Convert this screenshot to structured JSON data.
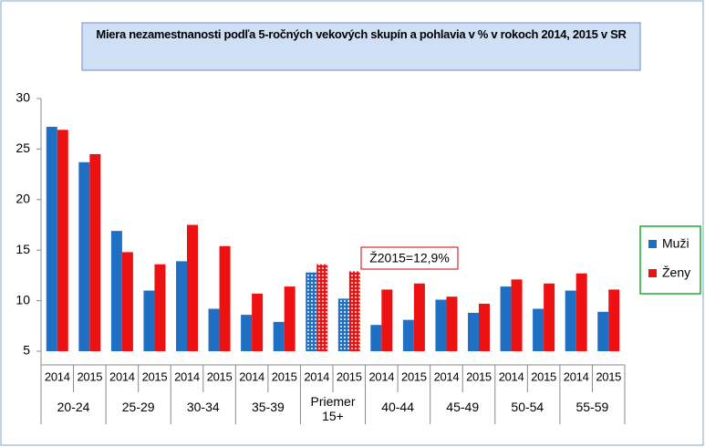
{
  "chart_data": {
    "type": "bar",
    "title": "Miera nezamestnanosti podľa 5-ročných vekových skupín a pohlavia v % v rokoch 2014, 2015 v SR",
    "categories": [
      "2014",
      "2015",
      "2014",
      "2015",
      "2014",
      "2015",
      "2014",
      "2015",
      "2014",
      "2015",
      "2014",
      "2015",
      "2014",
      "2015",
      "2014",
      "2015",
      "2014",
      "2015"
    ],
    "groups": [
      "20-24",
      "25-29",
      "30-34",
      "35-39",
      "Priemer 15+",
      "40-44",
      "45-49",
      "50-54",
      "55-59"
    ],
    "series": [
      {
        "name": "Muži",
        "color": "#1f6fc4",
        "values": [
          27.2,
          23.7,
          16.9,
          11.0,
          13.9,
          9.2,
          8.6,
          7.9,
          12.8,
          10.2,
          7.6,
          8.1,
          10.1,
          8.8,
          11.4,
          9.2,
          11.0,
          8.9
        ]
      },
      {
        "name": "Ženy",
        "color": "#ee1111",
        "values": [
          26.9,
          24.5,
          14.8,
          13.6,
          17.5,
          15.4,
          10.7,
          11.4,
          13.6,
          12.9,
          11.1,
          11.7,
          10.4,
          9.7,
          12.1,
          11.7,
          12.7,
          11.1
        ]
      }
    ],
    "patterned_groups": [
      4
    ],
    "annotation": "Ž2015=12,9%",
    "ylim": [
      5,
      30
    ],
    "yticks": [
      5,
      10,
      15,
      20,
      25,
      30
    ],
    "grid": false,
    "legend": "right"
  }
}
